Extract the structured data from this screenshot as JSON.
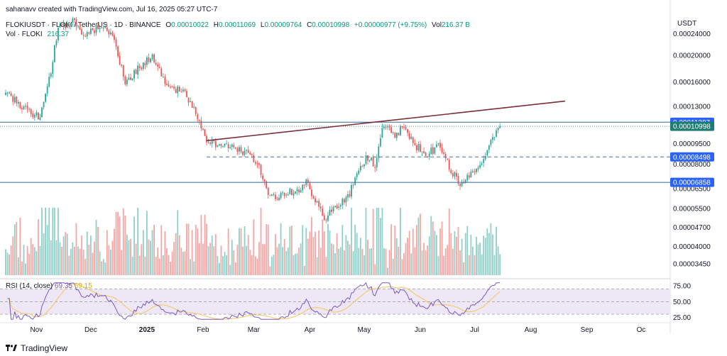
{
  "header": {
    "credit": "sahanavv created with TradingView.com, Jul 16, 2025 05:27 UTC-7",
    "symbol_line": "FLOKIUSDT · FLOKI / TetherUS · 1D · BINANCE",
    "ohlc": [
      {
        "k": "O",
        "v": "0.00010022"
      },
      {
        "k": "H",
        "v": "0.00011069"
      },
      {
        "k": "L",
        "v": "0.00009764"
      },
      {
        "k": "C",
        "v": "0.00010998"
      }
    ],
    "change": "+0.00000977 (+9.75%)",
    "vol_inline_label": "Vol",
    "vol_inline_value": "216.37 B",
    "vol_label": "Vol · FLOKI",
    "vol_value": "216.37"
  },
  "footer": {
    "brand": "TradingView"
  },
  "colors": {
    "up": "#26a69a",
    "down": "#ef5350",
    "up_vol": "#8fd0c9",
    "down_vol": "#f4a6a4",
    "trendline": "#7b2c37",
    "hline": "#4b7aa0",
    "dash": "#4c6e93",
    "badge": "#2962ff",
    "badge_last": "#1e7d72",
    "rsi": "#7e57c2",
    "rsi_ma": "#f5c96b",
    "rsi_band": "#ede7f6"
  },
  "chart_data": [
    {
      "type": "candlestick",
      "title": "FLOKIUSDT · FLOKI / TetherUS · 1D · BINANCE",
      "y_axis_label": "USDT",
      "y_scale": "log",
      "ylim": [
        3.1e-05,
        0.000283
      ],
      "y_ticks": [
        "0.00024000",
        "0.00020000",
        "0.00016000",
        "0.00013000",
        "0.00009500",
        "0.00008000",
        "0.00006500",
        "0.00005500",
        "0.00004700",
        "0.00004000",
        "0.00003450"
      ],
      "x_ticks": [
        "Nov",
        "Dec",
        "2025",
        "Feb",
        "Mar",
        "Apr",
        "May",
        "Jun",
        "Jul",
        "Aug",
        "Sep",
        "Oc"
      ],
      "price_badges": [
        {
          "label": "0.00011387",
          "value": 0.00011387,
          "style": "line"
        },
        {
          "label": "0.00010998",
          "value": 0.00010998,
          "style": "last"
        },
        {
          "label": "0.00008498",
          "value": 8.498e-05,
          "style": "dashed"
        },
        {
          "label": "0.00006858",
          "value": 6.858e-05,
          "style": "line"
        }
      ],
      "trendline": {
        "from": {
          "date": "2025-02-03",
          "value": 9.75e-05
        },
        "to": {
          "date": "2025-08-20",
          "value": 0.000136
        }
      },
      "anchors": [
        [
          "2024-10-15",
          0.000145
        ],
        [
          "2024-10-25",
          0.000128
        ],
        [
          "2024-11-03",
          0.000118
        ],
        [
          "2024-11-09",
          0.000175
        ],
        [
          "2024-11-13",
          0.000255
        ],
        [
          "2024-11-18",
          0.000258
        ],
        [
          "2024-11-22",
          0.000268
        ],
        [
          "2024-11-27",
          0.000235
        ],
        [
          "2024-12-02",
          0.000245
        ],
        [
          "2024-12-07",
          0.000258
        ],
        [
          "2024-12-13",
          0.00024
        ],
        [
          "2024-12-20",
          0.00016
        ],
        [
          "2024-12-27",
          0.000178
        ],
        [
          "2025-01-04",
          0.0002
        ],
        [
          "2025-01-10",
          0.000162
        ],
        [
          "2025-01-17",
          0.00015
        ],
        [
          "2025-01-22",
          0.000145
        ],
        [
          "2025-01-27",
          0.000128
        ],
        [
          "2025-02-03",
          9.8e-05
        ],
        [
          "2025-02-10",
          9.3e-05
        ],
        [
          "2025-02-18",
          9.4e-05
        ],
        [
          "2025-02-24",
          8.8e-05
        ],
        [
          "2025-03-03",
          8.2e-05
        ],
        [
          "2025-03-10",
          6e-05
        ],
        [
          "2025-03-17",
          6.2e-05
        ],
        [
          "2025-03-25",
          6.4e-05
        ],
        [
          "2025-03-30",
          6.8e-05
        ],
        [
          "2025-04-04",
          6e-05
        ],
        [
          "2025-04-09",
          5e-05
        ],
        [
          "2025-04-14",
          5.5e-05
        ],
        [
          "2025-04-22",
          6e-05
        ],
        [
          "2025-04-27",
          7.4e-05
        ],
        [
          "2025-05-02",
          8.4e-05
        ],
        [
          "2025-05-07",
          8e-05
        ],
        [
          "2025-05-11",
          0.000106
        ],
        [
          "2025-05-14",
          0.000113
        ],
        [
          "2025-05-18",
          0.000102
        ],
        [
          "2025-05-23",
          0.00011
        ],
        [
          "2025-05-28",
          9.6e-05
        ],
        [
          "2025-06-04",
          8.6e-05
        ],
        [
          "2025-06-11",
          9.3e-05
        ],
        [
          "2025-06-18",
          7.6e-05
        ],
        [
          "2025-06-23",
          6.8e-05
        ],
        [
          "2025-06-28",
          7.3e-05
        ],
        [
          "2025-07-05",
          8.2e-05
        ],
        [
          "2025-07-10",
          9.5e-05
        ],
        [
          "2025-07-15",
          0.00011
        ]
      ]
    },
    {
      "type": "bar",
      "title": "Vol · FLOKI",
      "note": "daily volume bars, colored by candle direction"
    },
    {
      "type": "line",
      "title": "RSI (14, close)",
      "values_printed": [
        "69.35",
        "69.15"
      ],
      "ylim": [
        20,
        82
      ],
      "y_ticks": [
        "75.00",
        "50.00",
        "25.00"
      ],
      "bands": {
        "upper": 70,
        "middle": 50,
        "lower": 30
      },
      "series": [
        {
          "name": "RSI",
          "last": 69.35
        },
        {
          "name": "RSI-based MA",
          "last": 69.15
        }
      ]
    }
  ]
}
